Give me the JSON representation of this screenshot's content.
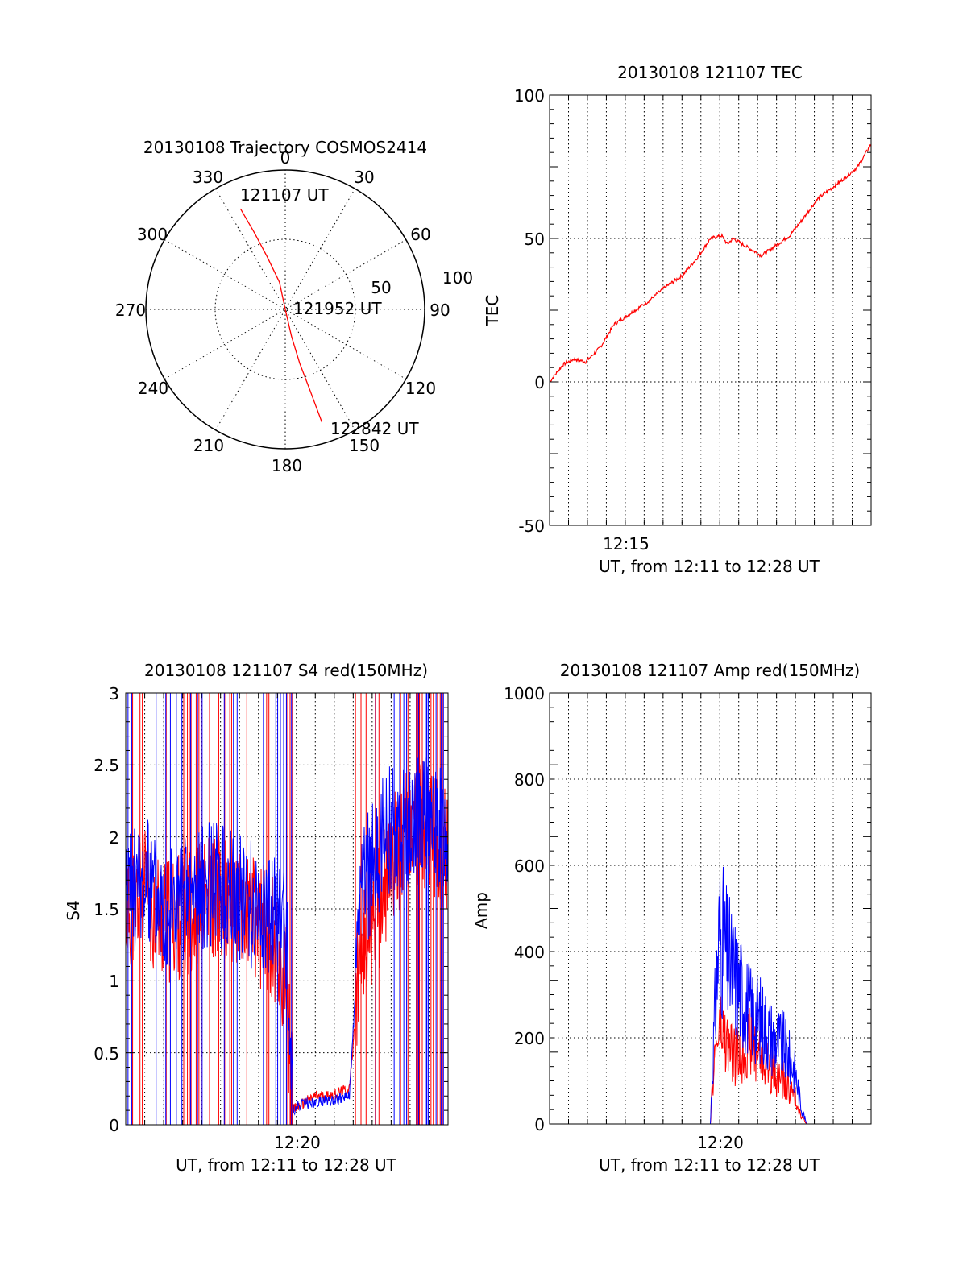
{
  "charts": {
    "trajectory": {
      "title": "20130108 Trajectory COSMOS2414",
      "type": "polar",
      "azimuth_labels": [
        "0",
        "30",
        "60",
        "90",
        "120",
        "150",
        "180",
        "210",
        "240",
        "270",
        "300",
        "330"
      ],
      "radial_labels": [
        "50",
        "100"
      ],
      "start_label": "121107 UT",
      "mid_label": "121952 UT",
      "end_label": "122842 UT",
      "path_color": "#ff0000"
    },
    "tec": {
      "title": "20130108 121107 TEC",
      "ylabel": "TEC",
      "xlabel": "UT, from 12:11 to 12:28 UT",
      "ytick_labels": [
        "100",
        "50",
        "0",
        "-50"
      ],
      "xtick_label": "12:15",
      "line_color": "#ff0000"
    },
    "s4": {
      "title": "20130108 121107 S4 red(150MHz)",
      "ylabel": "S4",
      "xlabel": "UT, from 12:11 to 12:28 UT",
      "ytick_labels": [
        "3",
        "2.5",
        "2",
        "1.5",
        "1",
        "0.5",
        "0"
      ],
      "xtick_label": "12:20",
      "red_color": "#ff0000",
      "blue_color": "#0000ff"
    },
    "amp": {
      "title": "20130108 121107 Amp red(150MHz)",
      "ylabel": "Amp",
      "xlabel": "UT, from 12:11 to 12:28 UT",
      "ytick_labels": [
        "1000",
        "800",
        "600",
        "400",
        "200",
        "0"
      ],
      "xtick_label": "12:20",
      "red_color": "#ff0000",
      "blue_color": "#0000ff"
    }
  },
  "chart_data": [
    {
      "type": "scatter",
      "name_hint": "polar trajectory",
      "coordinates": "azimuth_deg, zenith_radius",
      "rlim": [
        0,
        100
      ],
      "points": [
        [
          336,
          79
        ],
        [
          338,
          60
        ],
        [
          341,
          40
        ],
        [
          348,
          20
        ],
        [
          180,
          0
        ],
        [
          167,
          20
        ],
        [
          165,
          40
        ],
        [
          163,
          60
        ],
        [
          162,
          85
        ]
      ]
    },
    {
      "type": "line",
      "name_hint": "TEC",
      "xlim": [
        12.1833,
        12.4667
      ],
      "ylim": [
        -50,
        100
      ],
      "x": [
        12.1833,
        12.195,
        12.205,
        12.215,
        12.228,
        12.24,
        12.255,
        12.27,
        12.285,
        12.3,
        12.315,
        12.325,
        12.335,
        12.34,
        12.345,
        12.37,
        12.395,
        12.405,
        12.42,
        12.44,
        12.455,
        12.4667
      ],
      "y": [
        0,
        6,
        8,
        7,
        12,
        20,
        24,
        28,
        33,
        37,
        44,
        50,
        51,
        48,
        50,
        44,
        51,
        56,
        64,
        70,
        75,
        83
      ]
    },
    {
      "type": "line",
      "name_hint": "S4",
      "xlim": [
        12.1833,
        12.4667
      ],
      "ylim": [
        0,
        3
      ],
      "x": [
        12.1833,
        12.2,
        12.22,
        12.24,
        12.26,
        12.28,
        12.3,
        12.315,
        12.325,
        12.33,
        12.34,
        12.35,
        12.36,
        12.37,
        12.38,
        12.39,
        12.4,
        12.41,
        12.42,
        12.43,
        12.44,
        12.45,
        12.4667
      ],
      "series": [
        {
          "name": "red",
          "values": [
            1.5,
            1.6,
            1.4,
            1.5,
            1.6,
            1.5,
            1.4,
            1.3,
            0.9,
            0.1,
            0.15,
            0.2,
            0.2,
            0.22,
            0.25,
            1.2,
            1.4,
            1.6,
            1.9,
            2.0,
            2.1,
            2.0,
            1.9
          ]
        },
        {
          "name": "blue",
          "values": [
            1.6,
            1.7,
            1.5,
            1.6,
            1.7,
            1.6,
            1.5,
            1.4,
            1.3,
            0.1,
            0.15,
            0.15,
            0.17,
            0.18,
            0.2,
            1.6,
            1.8,
            2.0,
            2.1,
            2.0,
            2.2,
            2.1,
            2.0
          ]
        }
      ]
    },
    {
      "type": "line",
      "name_hint": "Amp",
      "xlim": [
        12.1833,
        12.4667
      ],
      "ylim": [
        0,
        1000
      ],
      "x": [
        12.1833,
        12.3,
        12.325,
        12.328,
        12.333,
        12.34,
        12.35,
        12.36,
        12.37,
        12.38,
        12.39,
        12.4,
        12.405,
        12.41,
        12.4667
      ],
      "series": [
        {
          "name": "red",
          "values": [
            0,
            0,
            0,
            140,
            220,
            180,
            150,
            190,
            160,
            120,
            100,
            60,
            20,
            0,
            0
          ]
        },
        {
          "name": "blue",
          "values": [
            0,
            0,
            0,
            200,
            450,
            380,
            320,
            260,
            240,
            200,
            180,
            120,
            40,
            0,
            0
          ]
        }
      ]
    }
  ]
}
